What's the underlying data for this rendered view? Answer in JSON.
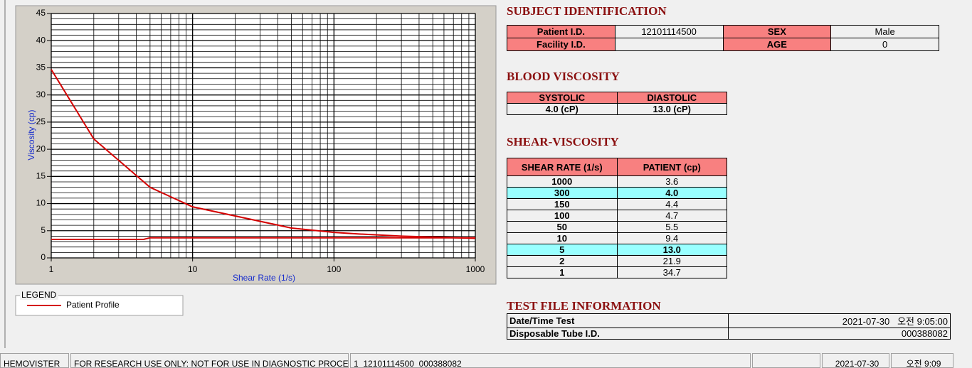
{
  "chart_data": {
    "type": "line",
    "x_label": "Shear Rate (1/s)",
    "y_label": "Viscosity (cp)",
    "legend_title": "LEGEND",
    "xscale": "log",
    "grid": true,
    "xlim": [
      1,
      1000
    ],
    "xticks": [
      1,
      10,
      100,
      1000
    ],
    "xminorticks": [
      2,
      3,
      4,
      5,
      6,
      7,
      8,
      9,
      20,
      30,
      40,
      50,
      60,
      70,
      80,
      90,
      200,
      300,
      400,
      500,
      600,
      700,
      800,
      900
    ],
    "ylim": [
      0,
      45
    ],
    "yticks": [
      0,
      5,
      10,
      15,
      20,
      25,
      30,
      35,
      40,
      45
    ],
    "yminorticks": [
      1,
      2,
      3,
      4,
      6,
      7,
      8,
      9,
      11,
      12,
      13,
      14,
      16,
      17,
      18,
      19,
      21,
      22,
      23,
      24,
      26,
      27,
      28,
      29,
      31,
      32,
      33,
      34,
      36,
      37,
      38,
      39,
      41,
      42,
      43,
      44
    ],
    "series": [
      {
        "name": "Patient Profile",
        "color": "#d40000",
        "x": [
          1,
          2,
          5,
          10,
          50,
          100,
          150,
          300,
          1000
        ],
        "values": [
          34.7,
          21.9,
          13.0,
          9.4,
          5.5,
          4.7,
          4.4,
          4.0,
          3.6
        ]
      },
      {
        "color": "#d40000",
        "x": [
          1,
          4.5,
          5,
          1000
        ],
        "values": [
          3.4,
          3.4,
          3.7,
          3.7
        ]
      }
    ]
  },
  "subject": {
    "title": "SUBJECT IDENTIFICATION",
    "rows": [
      [
        "Patient I.D.",
        "12101114500",
        "SEX",
        "Male"
      ],
      [
        "Facility I.D.",
        null,
        "AGE",
        "0"
      ]
    ]
  },
  "blood": {
    "title": "BLOOD VISCOSITY",
    "headers": [
      "SYSTOLIC",
      "DIASTOLIC"
    ],
    "values": [
      "4.0 (cP)",
      "13.0 (cP)"
    ]
  },
  "shear": {
    "title": "SHEAR-VISCOSITY",
    "headers": [
      "SHEAR RATE (1/s)",
      "PATIENT (cp)"
    ],
    "highlight_rows": [
      1,
      6
    ],
    "rows": [
      [
        "1000",
        "3.6"
      ],
      [
        "300",
        "4.0"
      ],
      [
        "150",
        "4.4"
      ],
      [
        "100",
        "4.7"
      ],
      [
        "50",
        "5.5"
      ],
      [
        "10",
        "9.4"
      ],
      [
        "5",
        "13.0"
      ],
      [
        "2",
        "21.9"
      ],
      [
        "1",
        "34.7"
      ]
    ]
  },
  "test_file": {
    "title": "TEST FILE INFORMATION",
    "rows": [
      [
        "Date/Time Test",
        "2021-07-30   오전 9:05:00"
      ],
      [
        "Disposable Tube I.D.",
        "000388082"
      ]
    ]
  },
  "status_bar": [
    "HEMOVISTER",
    "FOR RESEARCH USE ONLY: NOT FOR USE IN DIAGNOSTIC PROCEDURES",
    "1  12101114500  000388082",
    "2021-07-30",
    "오전 9:09"
  ]
}
